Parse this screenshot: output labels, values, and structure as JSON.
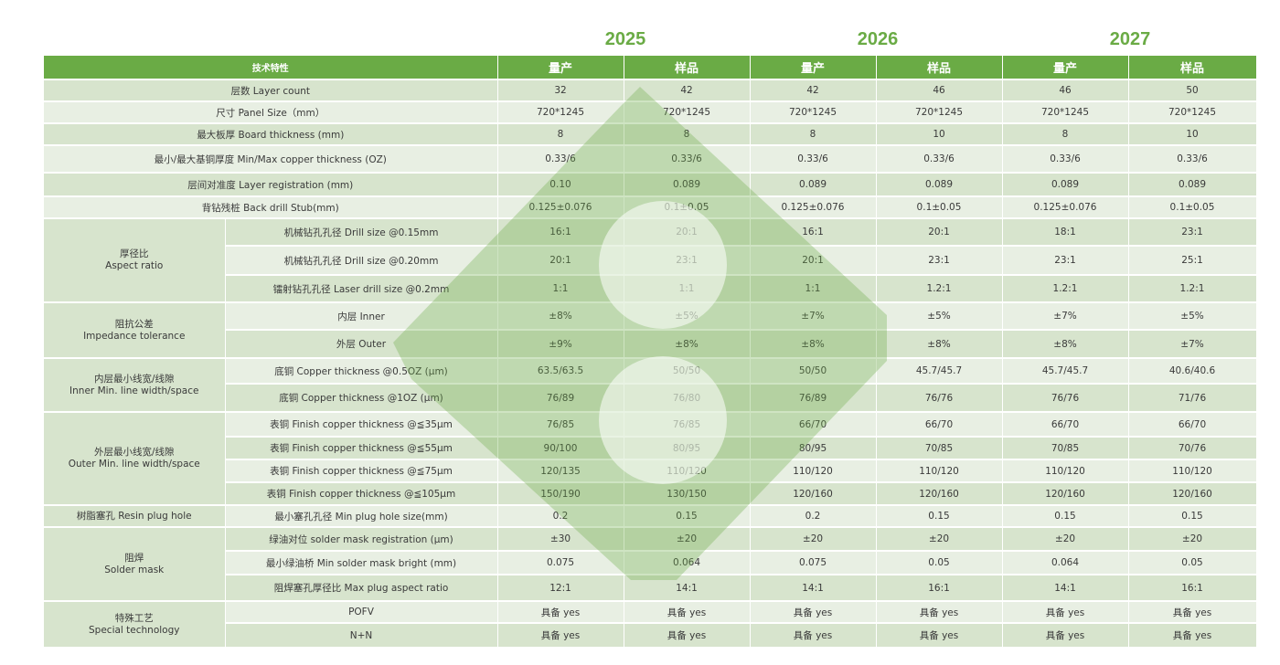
{
  "years": [
    "2025",
    "2026",
    "2027"
  ],
  "header": {
    "feature": "技术特性",
    "columns": [
      "量产",
      "样品",
      "量产",
      "样品",
      "量产",
      "样品"
    ]
  },
  "rows": [
    {
      "group": null,
      "label": "层数 Layer count",
      "values": [
        "32",
        "42",
        "42",
        "46",
        "46",
        "50"
      ]
    },
    {
      "group": null,
      "label": "尺寸 Panel Size（mm）",
      "values": [
        "720*1245",
        "720*1245",
        "720*1245",
        "720*1245",
        "720*1245",
        "720*1245"
      ]
    },
    {
      "group": null,
      "label": "最大板厚 Board thickness (mm)",
      "values": [
        "8",
        "8",
        "8",
        "10",
        "8",
        "10"
      ]
    },
    {
      "group": null,
      "label": "最小/最大基铜厚度 Min/Max copper  thickness (OZ)",
      "values": [
        "0.33/6",
        "0.33/6",
        "0.33/6",
        "0.33/6",
        "0.33/6",
        "0.33/6"
      ]
    },
    {
      "group": null,
      "label": "层间对准度 Layer  registration (mm)",
      "values": [
        "0.10",
        "0.089",
        "0.089",
        "0.089",
        "0.089",
        "0.089"
      ]
    },
    {
      "group": null,
      "label": "背钻残桩 Back drill Stub(mm)",
      "values": [
        "0.125±0.076",
        "0.1±0.05",
        "0.125±0.076",
        "0.1±0.05",
        "0.125±0.076",
        "0.1±0.05"
      ]
    },
    {
      "group": "厚径比\nAspect ratio",
      "label": "机械钻孔孔径 Drill size @0.15mm",
      "values": [
        "16:1",
        "20:1",
        "16:1",
        "20:1",
        "18:1",
        "23:1"
      ]
    },
    {
      "group": "",
      "label": "机械钻孔孔径 Drill size @0.20mm",
      "values": [
        "20:1",
        "23:1",
        "20:1",
        "23:1",
        "23:1",
        "25:1"
      ]
    },
    {
      "group": "",
      "label": "镭射钻孔孔径 Laser drill size @0.2mm",
      "values": [
        "1:1",
        "1:1",
        "1:1",
        "1.2:1",
        "1.2:1",
        "1.2:1"
      ]
    },
    {
      "group": "阻抗公差\nImpedance tolerance",
      "label": "内层 Inner",
      "values": [
        "±8%",
        "±5%",
        "±7%",
        "±5%",
        "±7%",
        "±5%"
      ]
    },
    {
      "group": "",
      "label": "外层 Outer",
      "values": [
        "±9%",
        "±8%",
        "±8%",
        "±8%",
        "±8%",
        "±7%"
      ]
    },
    {
      "group": "内层最小线宽/线隙\nInner Min. line width/space",
      "label": "底铜 Copper thickness @0.5OZ (μm)",
      "values": [
        "63.5/63.5",
        "50/50",
        "50/50",
        "45.7/45.7",
        "45.7/45.7",
        "40.6/40.6"
      ]
    },
    {
      "group": "",
      "label": "底铜 Copper thickness @1OZ (μm)",
      "values": [
        "76/89",
        "76/80",
        "76/89",
        "76/76",
        "76/76",
        "71/76"
      ]
    },
    {
      "group": "外层最小线宽/线隙\nOuter Min. line width/space",
      "label": "表铜 Finish copper thickness @≦35μm",
      "values": [
        "76/85",
        "76/85",
        "66/70",
        "66/70",
        "66/70",
        "66/70"
      ]
    },
    {
      "group": "",
      "label": "表铜 Finish copper thickness @≦55μm",
      "values": [
        "90/100",
        "80/95",
        "80/95",
        "70/85",
        "70/85",
        "70/76"
      ]
    },
    {
      "group": "",
      "label": "表铜 Finish copper thickness @≦75μm",
      "values": [
        "120/135",
        "110/120",
        "110/120",
        "110/120",
        "110/120",
        "110/120"
      ]
    },
    {
      "group": "",
      "label": "表铜 Finish copper thickness @≦105μm",
      "values": [
        "150/190",
        "130/150",
        "120/160",
        "120/160",
        "120/160",
        "120/160"
      ]
    },
    {
      "group": "树脂塞孔 Resin plug hole",
      "label": "最小塞孔孔径 Min plug hole size(mm)",
      "values": [
        "0.2",
        "0.15",
        "0.2",
        "0.15",
        "0.15",
        "0.15"
      ]
    },
    {
      "group": "阻焊\nSolder mask",
      "label": "绿油对位 solder mask registration (μm)",
      "values": [
        "±30",
        "±20",
        "±20",
        "±20",
        "±20",
        "±20"
      ]
    },
    {
      "group": "",
      "label": "最小绿油桥 Min solder mask bright (mm)",
      "values": [
        "0.075",
        "0.064",
        "0.075",
        "0.05",
        "0.064",
        "0.05"
      ]
    },
    {
      "group": "",
      "label": "阻焊塞孔厚径比 Max plug aspect ratio",
      "values": [
        "12:1",
        "14:1",
        "14:1",
        "16:1",
        "14:1",
        "16:1"
      ]
    },
    {
      "group": "特殊工艺\nSpecial technology",
      "label": "POFV",
      "values": [
        "具备 yes",
        "具备 yes",
        "具备 yes",
        "具备 yes",
        "具备 yes",
        "具备 yes"
      ]
    },
    {
      "group": "",
      "label": "N+N",
      "values": [
        "具备 yes",
        "具备 yes",
        "具备 yes",
        "具备 yes",
        "具备 yes",
        "具备 yes"
      ]
    }
  ]
}
